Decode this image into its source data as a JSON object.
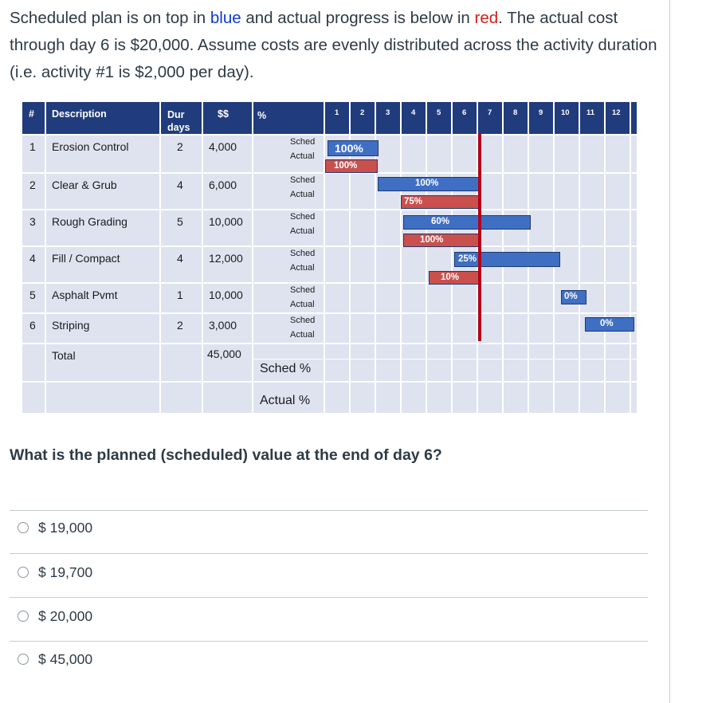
{
  "intro": {
    "part1": "Scheduled plan is on top in ",
    "blue_word": "blue",
    "part2": " and actual progress is below in ",
    "red_word": "red",
    "part3": ". The actual cost through day 6 is $20,000. Assume costs are evenly distributed across the activity duration (i.e. activity #1 is $2,000 per day)."
  },
  "table": {
    "headers": {
      "num": "#",
      "description": "Description",
      "dur": "Dur days",
      "cost": "$$",
      "pct": "%"
    },
    "days": [
      "1",
      "2",
      "3",
      "4",
      "5",
      "6",
      "7",
      "8",
      "9",
      "10",
      "11",
      "12"
    ],
    "rows": [
      {
        "num": "1",
        "description": "Erosion Control",
        "dur": "2",
        "cost": "4,000",
        "sched": "Sched",
        "actual": "Actual",
        "sched_pct": "100%",
        "actual_pct": "100%"
      },
      {
        "num": "2",
        "description": "Clear & Grub",
        "dur": "4",
        "cost": "6,000",
        "sched": "Sched",
        "actual": "Actual",
        "sched_pct": "100%",
        "actual_pct": "75%"
      },
      {
        "num": "3",
        "description": "Rough Grading",
        "dur": "5",
        "cost": "10,000",
        "sched": "Sched",
        "actual": "Actual",
        "sched_pct": "60%",
        "actual_pct": "100%"
      },
      {
        "num": "4",
        "description": "Fill / Compact",
        "dur": "4",
        "cost": "12,000",
        "sched": "Sched",
        "actual": "Actual",
        "sched_pct": "25%",
        "actual_pct": "10%"
      },
      {
        "num": "5",
        "description": "Asphalt Pvmt",
        "dur": "1",
        "cost": "10,000",
        "sched": "Sched",
        "actual": "Actual",
        "sched_pct": "0%"
      },
      {
        "num": "6",
        "description": "Striping",
        "dur": "2",
        "cost": "3,000",
        "sched": "Sched",
        "actual": "Actual",
        "sched_pct": "0%"
      }
    ],
    "total_label": "Total",
    "total_cost": "45,000",
    "sched_pct_label": "Sched %",
    "actual_pct_label": "Actual %",
    "colors": {
      "header": "#203c7c",
      "sched_bar": "#3f6fc3",
      "actual_bar": "#c9504d",
      "status_line": "#b3001b"
    }
  },
  "question": "What is the planned (scheduled) value at the end of day 6?",
  "options": [
    "$ 19,000",
    "$ 19,700",
    "$ 20,000",
    "$ 45,000"
  ]
}
